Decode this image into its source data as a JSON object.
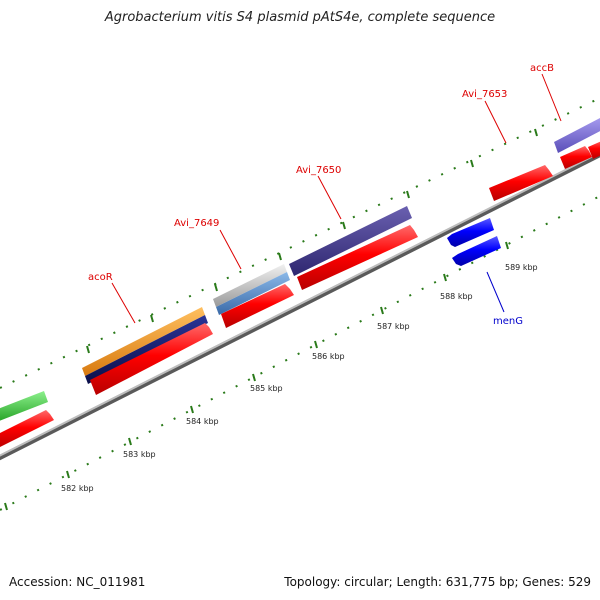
{
  "title": "Agrobacterium vitis S4 plasmid pAtS4e, complete sequence",
  "footer": {
    "accession": "Accession: NC_011981",
    "topology": "Topology: circular; Length: 631,775 bp; Genes: 529"
  },
  "gene_labels": {
    "acoR": "acoR",
    "avi_7649": "Avi_7649",
    "avi_7650": "Avi_7650",
    "avi_7653": "Avi_7653",
    "accB": "accB",
    "menG": "menG"
  },
  "scale_labels": [
    "582 kbp",
    "583 kbp",
    "584 kbp",
    "585 kbp",
    "586 kbp",
    "587 kbp",
    "588 kbp",
    "589 kbp"
  ],
  "colors": {
    "forward_cds": "#ff0000",
    "reverse_cds": "#0000ff",
    "label_forward": "#dd0000",
    "label_reverse": "#0000cc",
    "backbone": "#888888",
    "tick": "#2a7a1a",
    "cog_orange": "#f0961e",
    "cog_navy": "#121a6e",
    "cog_gray": "#b8b8b8",
    "cog_lightblue": "#5a8ec8",
    "cog_purple": "#4a3f8c",
    "cog_lavender": "#7b6ed4",
    "cog_green": "#3cc83c"
  }
}
